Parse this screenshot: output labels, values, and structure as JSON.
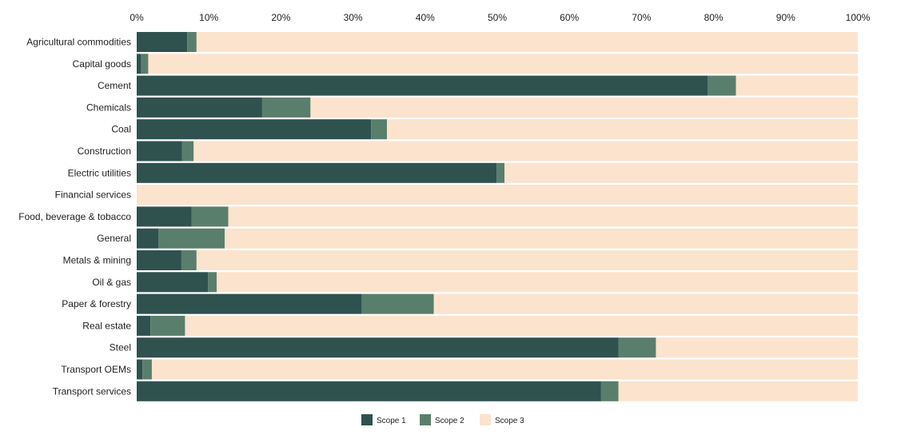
{
  "chart_data": {
    "type": "bar",
    "orientation": "horizontal",
    "stacked": true,
    "xlim": [
      0,
      100
    ],
    "x_ticks": [
      "0%",
      "10%",
      "20%",
      "30%",
      "40%",
      "50%",
      "60%",
      "70%",
      "80%",
      "90%",
      "100%"
    ],
    "categories": [
      "Agricultural commodities",
      "Capital goods",
      "Cement",
      "Chemicals",
      "Coal",
      "Construction",
      "Electric utilities",
      "Financial services",
      "Food, beverage & tobacco",
      "General",
      "Metals & mining",
      "Oil & gas",
      "Paper & forestry",
      "Real estate",
      "Steel",
      "Transport OEMs",
      "Transport services"
    ],
    "series": [
      {
        "name": "Scope 1",
        "color": "#2f524f",
        "values": [
          7.0,
          0.6,
          79.2,
          17.4,
          32.5,
          6.3,
          49.9,
          0.0,
          7.6,
          3.0,
          6.2,
          9.9,
          31.2,
          1.9,
          66.8,
          0.8,
          64.4
        ]
      },
      {
        "name": "Scope 2",
        "color": "#5a7e6c",
        "values": [
          1.3,
          1.0,
          3.9,
          6.7,
          2.2,
          1.6,
          1.1,
          0.0,
          5.1,
          9.2,
          2.1,
          1.2,
          10.0,
          4.8,
          5.2,
          1.3,
          2.4
        ]
      },
      {
        "name": "Scope 3",
        "color": "#fbe3cd",
        "values": [
          91.7,
          98.4,
          16.9,
          75.9,
          65.3,
          92.1,
          49.0,
          100.0,
          87.3,
          87.8,
          91.7,
          88.9,
          58.8,
          93.3,
          28.0,
          97.9,
          33.2
        ]
      }
    ],
    "legend": "bottom-center",
    "grid": false
  }
}
